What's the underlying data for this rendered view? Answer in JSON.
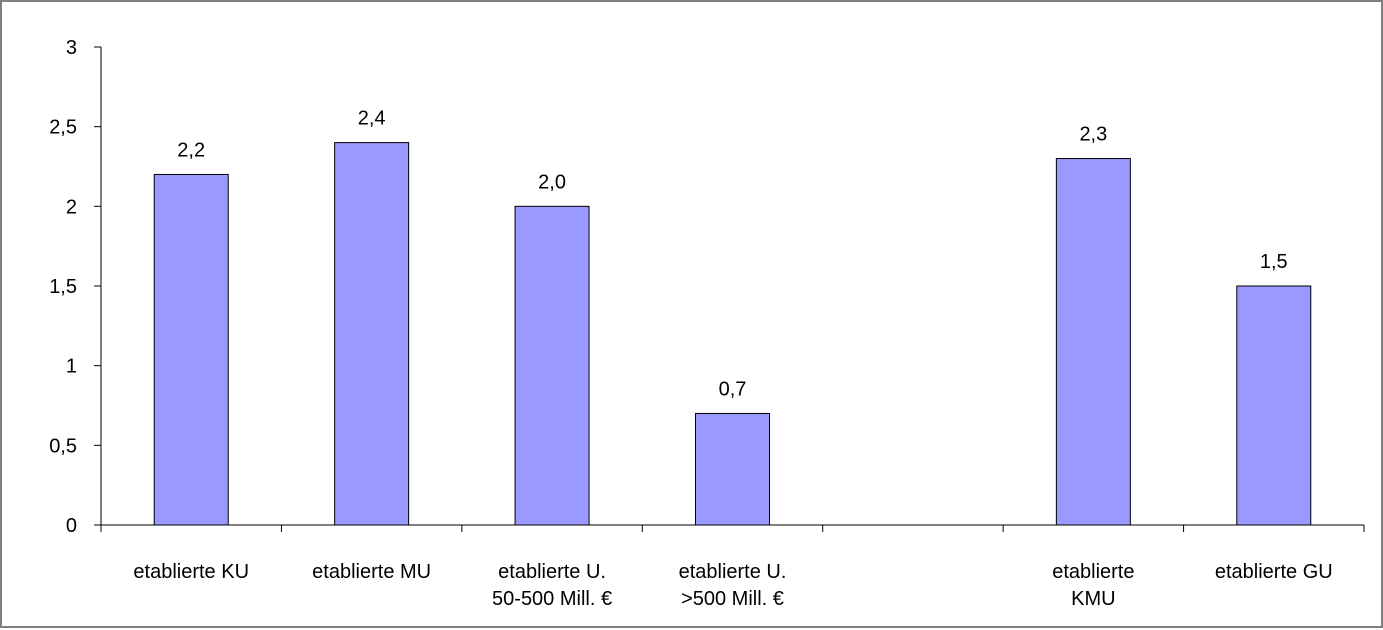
{
  "chart_data": {
    "type": "bar",
    "title": "",
    "xlabel": "",
    "ylabel": "",
    "ylim": [
      0,
      3
    ],
    "ytick_step": 0.5,
    "ytick_labels": [
      "0",
      "0,5",
      "1",
      "1,5",
      "2",
      "2,5",
      "3"
    ],
    "grid": false,
    "legend": "none",
    "categories": [
      [
        "etablierte KU"
      ],
      [
        "etablierte MU"
      ],
      [
        "etablierte U.",
        "50-500 Mill. €"
      ],
      [
        "etablierte U.",
        ">500 Mill. €"
      ],
      [],
      [
        "etablierte",
        "KMU"
      ],
      [
        "etablierte GU"
      ]
    ],
    "values": [
      2.2,
      2.4,
      2.0,
      0.7,
      null,
      2.3,
      1.5
    ],
    "data_labels": [
      "2,2",
      "2,4",
      "2,0",
      "0,7",
      "",
      "2,3",
      "1,5"
    ],
    "colors": {
      "bar_fill": "#9999FF",
      "bar_stroke": "#000000",
      "axis": "#000000"
    }
  }
}
